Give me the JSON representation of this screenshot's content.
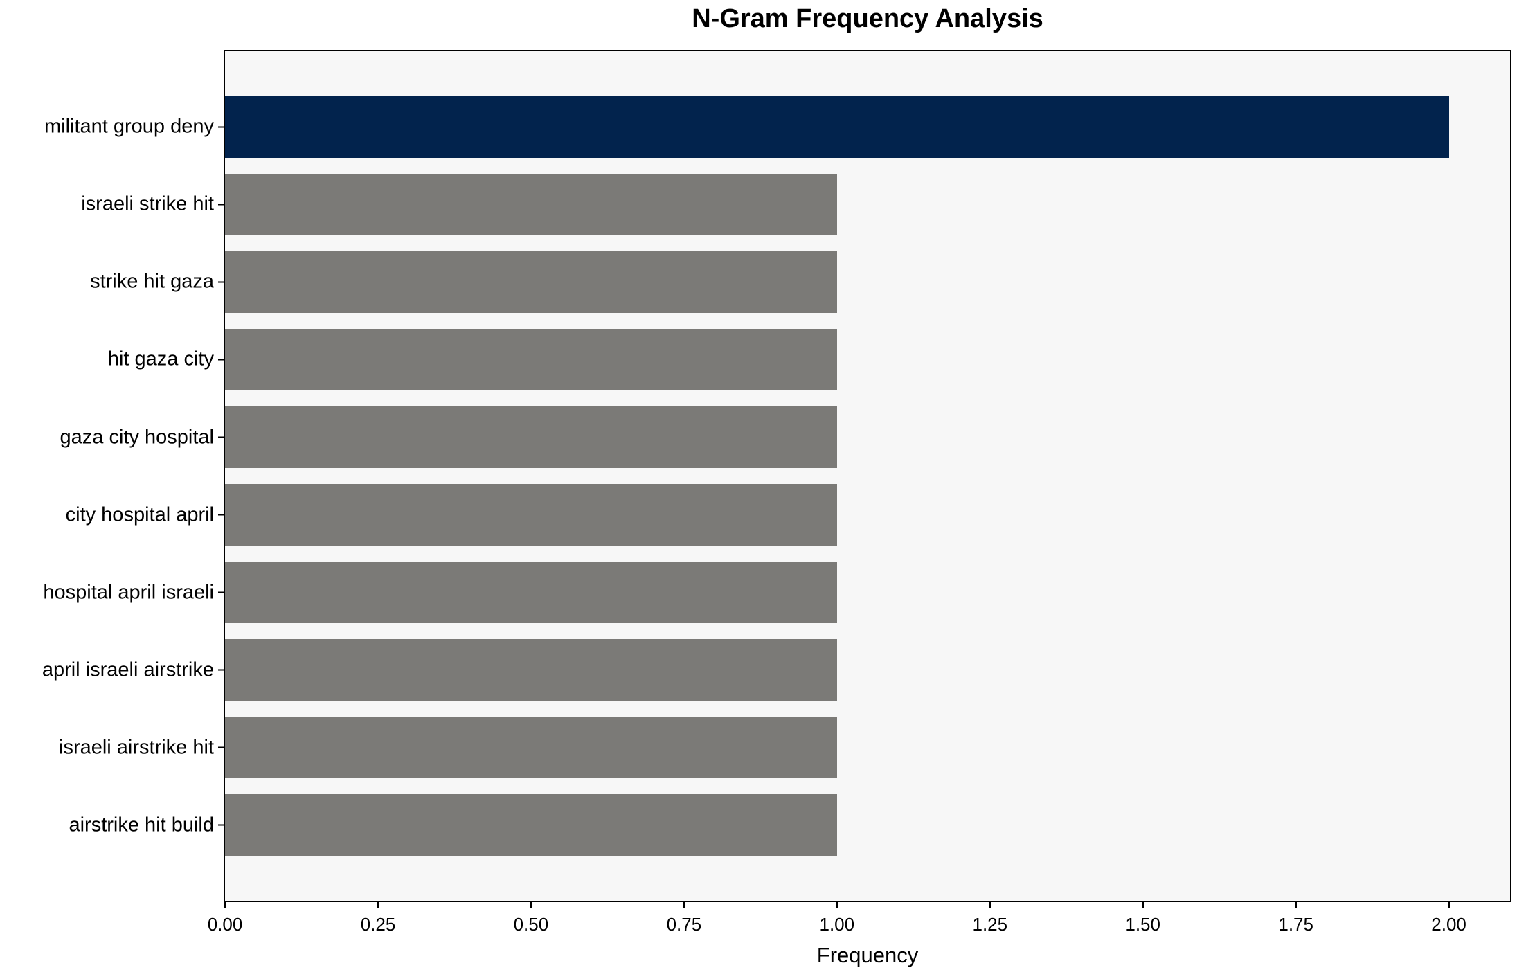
{
  "chart_data": {
    "type": "bar",
    "orientation": "horizontal",
    "title": "N-Gram Frequency Analysis",
    "xlabel": "Frequency",
    "ylabel": "",
    "categories": [
      "militant group deny",
      "israeli strike hit",
      "strike hit gaza",
      "hit gaza city",
      "gaza city hospital",
      "city hospital april",
      "hospital april israeli",
      "april israeli airstrike",
      "israeli airstrike hit",
      "airstrike hit build"
    ],
    "values": [
      2,
      1,
      1,
      1,
      1,
      1,
      1,
      1,
      1,
      1
    ],
    "xlim": [
      0,
      2.1
    ],
    "xtick_labels": [
      "0.00",
      "0.25",
      "0.50",
      "0.75",
      "1.00",
      "1.25",
      "1.50",
      "1.75",
      "2.00"
    ],
    "xtick_values": [
      0,
      0.25,
      0.5,
      0.75,
      1.0,
      1.25,
      1.5,
      1.75,
      2.0
    ],
    "grid": false,
    "legend": null,
    "colors": {
      "highlight_bar": "#02234D",
      "default_bar": "#7B7A77",
      "plot_background": "#F7F7F7",
      "figure_background": "#FFFFFF",
      "spine": "#000000",
      "bar_colors": [
        "#02234D",
        "#7B7A77",
        "#7B7A77",
        "#7B7A77",
        "#7B7A77",
        "#7B7A77",
        "#7B7A77",
        "#7B7A77",
        "#7B7A77",
        "#7B7A77"
      ]
    }
  }
}
